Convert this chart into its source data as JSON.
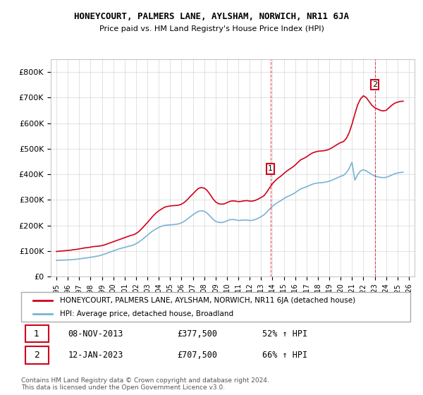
{
  "title": "HONEYCOURT, PALMERS LANE, AYLSHAM, NORWICH, NR11 6JA",
  "subtitle": "Price paid vs. HM Land Registry's House Price Index (HPI)",
  "legend_line1": "HONEYCOURT, PALMERS LANE, AYLSHAM, NORWICH, NR11 6JA (detached house)",
  "legend_line2": "HPI: Average price, detached house, Broadland",
  "red_color": "#d0021b",
  "blue_color": "#7ab3d4",
  "sale1_date": "08-NOV-2013",
  "sale1_price": "£377,500",
  "sale1_note": "52% ↑ HPI",
  "sale2_date": "12-JAN-2023",
  "sale2_price": "£707,500",
  "sale2_note": "66% ↑ HPI",
  "footer": "Contains HM Land Registry data © Crown copyright and database right 2024.\nThis data is licensed under the Open Government Licence v3.0.",
  "ylim": [
    0,
    850000
  ],
  "yticks": [
    0,
    100000,
    200000,
    300000,
    400000,
    500000,
    600000,
    700000,
    800000
  ],
  "xlabel_years": [
    "1995",
    "1996",
    "1997",
    "1998",
    "1999",
    "2000",
    "2001",
    "2002",
    "2003",
    "2004",
    "2005",
    "2006",
    "2007",
    "2008",
    "2009",
    "2010",
    "2011",
    "2012",
    "2013",
    "2014",
    "2015",
    "2016",
    "2017",
    "2018",
    "2019",
    "2020",
    "2021",
    "2022",
    "2023",
    "2024",
    "2025",
    "2026"
  ],
  "red_x": [
    1995.0,
    1995.25,
    1995.5,
    1995.75,
    1996.0,
    1996.25,
    1996.5,
    1996.75,
    1997.0,
    1997.25,
    1997.5,
    1997.75,
    1998.0,
    1998.25,
    1998.5,
    1998.75,
    1999.0,
    1999.25,
    1999.5,
    1999.75,
    2000.0,
    2000.25,
    2000.5,
    2000.75,
    2001.0,
    2001.25,
    2001.5,
    2001.75,
    2002.0,
    2002.25,
    2002.5,
    2002.75,
    2003.0,
    2003.25,
    2003.5,
    2003.75,
    2004.0,
    2004.25,
    2004.5,
    2004.75,
    2005.0,
    2005.25,
    2005.5,
    2005.75,
    2006.0,
    2006.25,
    2006.5,
    2006.75,
    2007.0,
    2007.25,
    2007.5,
    2007.75,
    2008.0,
    2008.25,
    2008.5,
    2008.75,
    2009.0,
    2009.25,
    2009.5,
    2009.75,
    2010.0,
    2010.25,
    2010.5,
    2010.75,
    2011.0,
    2011.25,
    2011.5,
    2011.75,
    2012.0,
    2012.25,
    2012.5,
    2012.75,
    2013.0,
    2013.25,
    2013.5,
    2013.75,
    2014.0,
    2014.25,
    2014.5,
    2014.75,
    2015.0,
    2015.25,
    2015.5,
    2015.75,
    2016.0,
    2016.25,
    2016.5,
    2016.75,
    2017.0,
    2017.25,
    2017.5,
    2017.75,
    2018.0,
    2018.25,
    2018.5,
    2018.75,
    2019.0,
    2019.25,
    2019.5,
    2019.75,
    2020.0,
    2020.25,
    2020.5,
    2020.75,
    2021.0,
    2021.25,
    2021.5,
    2021.75,
    2022.0,
    2022.25,
    2022.5,
    2022.75,
    2023.0,
    2023.25,
    2023.5,
    2023.75,
    2024.0,
    2024.25,
    2024.5,
    2024.75,
    2025.0,
    2025.25,
    2025.5
  ],
  "red_y": [
    98000,
    99000,
    100000,
    101000,
    102000,
    103000,
    105000,
    106000,
    108000,
    110000,
    112000,
    113000,
    115000,
    117000,
    118000,
    119000,
    121000,
    124000,
    128000,
    132000,
    136000,
    140000,
    144000,
    148000,
    152000,
    156000,
    160000,
    163000,
    168000,
    176000,
    187000,
    199000,
    211000,
    224000,
    237000,
    248000,
    257000,
    264000,
    271000,
    274000,
    276000,
    277000,
    278000,
    279000,
    283000,
    290000,
    300000,
    312000,
    323000,
    335000,
    345000,
    348000,
    346000,
    337000,
    322000,
    305000,
    292000,
    285000,
    283000,
    284000,
    289000,
    294000,
    296000,
    295000,
    293000,
    294000,
    296000,
    297000,
    295000,
    295000,
    298000,
    303000,
    309000,
    316000,
    330000,
    347000,
    363000,
    375000,
    385000,
    393000,
    403000,
    412000,
    420000,
    427000,
    436000,
    447000,
    457000,
    462000,
    468000,
    476000,
    483000,
    487000,
    490000,
    491000,
    492000,
    494000,
    498000,
    504000,
    511000,
    518000,
    524000,
    528000,
    540000,
    563000,
    596000,
    636000,
    672000,
    695000,
    707000,
    700000,
    685000,
    670000,
    660000,
    655000,
    650000,
    648000,
    650000,
    660000,
    670000,
    678000,
    682000,
    685000,
    686000
  ],
  "blue_x": [
    1995.0,
    1995.25,
    1995.5,
    1995.75,
    1996.0,
    1996.25,
    1996.5,
    1996.75,
    1997.0,
    1997.25,
    1997.5,
    1997.75,
    1998.0,
    1998.25,
    1998.5,
    1998.75,
    1999.0,
    1999.25,
    1999.5,
    1999.75,
    2000.0,
    2000.25,
    2000.5,
    2000.75,
    2001.0,
    2001.25,
    2001.5,
    2001.75,
    2002.0,
    2002.25,
    2002.5,
    2002.75,
    2003.0,
    2003.25,
    2003.5,
    2003.75,
    2004.0,
    2004.25,
    2004.5,
    2004.75,
    2005.0,
    2005.25,
    2005.5,
    2005.75,
    2006.0,
    2006.25,
    2006.5,
    2006.75,
    2007.0,
    2007.25,
    2007.5,
    2007.75,
    2008.0,
    2008.25,
    2008.5,
    2008.75,
    2009.0,
    2009.25,
    2009.5,
    2009.75,
    2010.0,
    2010.25,
    2010.5,
    2010.75,
    2011.0,
    2011.25,
    2011.5,
    2011.75,
    2012.0,
    2012.25,
    2012.5,
    2012.75,
    2013.0,
    2013.25,
    2013.5,
    2013.75,
    2014.0,
    2014.25,
    2014.5,
    2014.75,
    2015.0,
    2015.25,
    2015.5,
    2015.75,
    2016.0,
    2016.25,
    2016.5,
    2016.75,
    2017.0,
    2017.25,
    2017.5,
    2017.75,
    2018.0,
    2018.25,
    2018.5,
    2018.75,
    2019.0,
    2019.25,
    2019.5,
    2019.75,
    2020.0,
    2020.25,
    2020.5,
    2020.75,
    2021.0,
    2021.25,
    2021.5,
    2021.75,
    2022.0,
    2022.25,
    2022.5,
    2022.75,
    2023.0,
    2023.25,
    2023.5,
    2023.75,
    2024.0,
    2024.25,
    2024.5,
    2024.75,
    2025.0,
    2025.25,
    2025.5
  ],
  "blue_y": [
    63000,
    63500,
    64000,
    64500,
    65000,
    65500,
    66500,
    67500,
    69000,
    70500,
    72000,
    73500,
    75000,
    77000,
    79000,
    81000,
    84000,
    88000,
    92000,
    96000,
    100000,
    104000,
    108000,
    111000,
    114000,
    117000,
    120000,
    123000,
    128000,
    135000,
    143000,
    152000,
    161000,
    171000,
    179000,
    186000,
    192000,
    197000,
    200000,
    201000,
    202000,
    203000,
    204000,
    206000,
    210000,
    216000,
    224000,
    233000,
    241000,
    249000,
    255000,
    257000,
    255000,
    248000,
    237000,
    225000,
    216000,
    212000,
    211000,
    213000,
    218000,
    222000,
    223000,
    222000,
    219000,
    220000,
    221000,
    221000,
    219000,
    220000,
    223000,
    228000,
    234000,
    241000,
    252000,
    264000,
    275000,
    283000,
    291000,
    297000,
    305000,
    311000,
    316000,
    321000,
    328000,
    336000,
    343000,
    347000,
    351000,
    356000,
    361000,
    364000,
    366000,
    367000,
    368000,
    370000,
    373000,
    377000,
    382000,
    387000,
    392000,
    396000,
    406000,
    423000,
    447000,
    377000,
    399000,
    413000,
    418000,
    413000,
    406000,
    399000,
    393000,
    390000,
    388000,
    387000,
    388000,
    392000,
    397000,
    402000,
    405000,
    407000,
    408000
  ]
}
